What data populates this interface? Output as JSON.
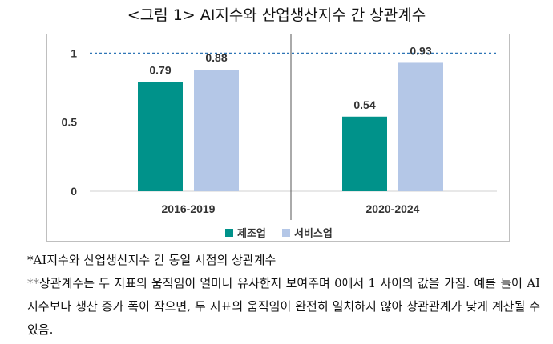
{
  "title": "<그림 1> AI지수와 산업생산지수 간 상관계수",
  "chart_data": {
    "type": "bar",
    "categories": [
      "2016-2019",
      "2020-2024"
    ],
    "series": [
      {
        "name": "제조업",
        "values": [
          0.79,
          0.54
        ],
        "color": "#00928A"
      },
      {
        "name": "서비스업",
        "values": [
          0.88,
          0.93
        ],
        "color": "#B4C7E7"
      }
    ],
    "value_labels": [
      [
        "0.79",
        "0.54"
      ],
      [
        "0.88",
        "0.93"
      ]
    ],
    "y_ticks": [
      {
        "value": 0,
        "label": "0"
      },
      {
        "value": 0.5,
        "label": "0.5"
      },
      {
        "value": 1,
        "label": "1"
      }
    ],
    "ylim": [
      0,
      1.06
    ],
    "reference_line": {
      "value": 1,
      "style": "dashed",
      "color": "#2E75B6"
    },
    "legend_position": "bottom-left",
    "divider_between_categories": true,
    "grid": false,
    "xlabel": "",
    "ylabel": ""
  },
  "notes": {
    "line1": "*AI지수와 산업생산지수 간 동일 시점의 상관계수",
    "line2_star": "**",
    "line2": "상관계수는 두 지표의 움직임이 얼마나 유사한지 보여주며 0에서 1 사이의 값을 가짐. 예를 들어 AI지수보다 생산 증가 폭이 작으면, 두 지표의 움직임이 완전히 일치하지 않아 상관관계가 낮게 계산될 수 있음."
  }
}
